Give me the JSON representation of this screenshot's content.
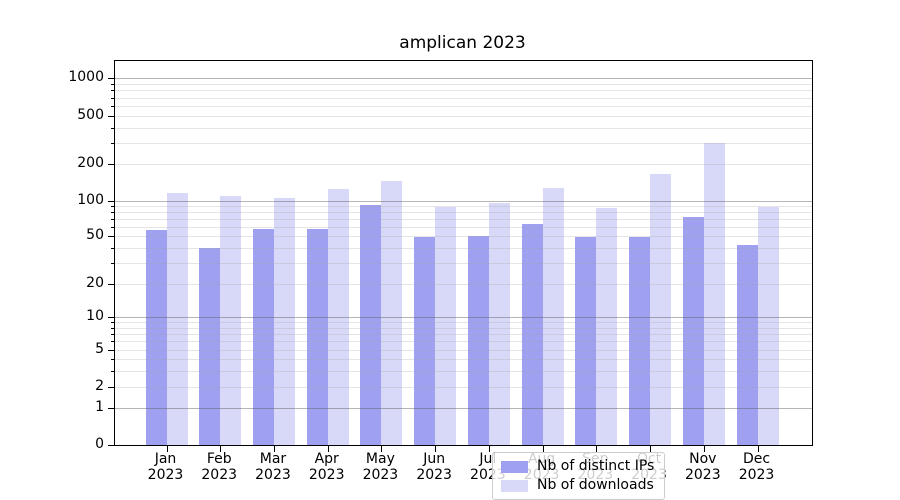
{
  "title": "amplican 2023",
  "legend": {
    "items": [
      {
        "label": "Nb of distinct IPs",
        "color": "#a0a0f0"
      },
      {
        "label": "Nb of downloads",
        "color": "#d8d8f8"
      }
    ]
  },
  "chart_data": {
    "type": "bar",
    "title": "amplican 2023",
    "categories": [
      "Jan",
      "Feb",
      "Mar",
      "Apr",
      "May",
      "Jun",
      "Jul",
      "Aug",
      "Sep",
      "Oct",
      "Nov",
      "Dec"
    ],
    "year": "2023",
    "series": [
      {
        "name": "Nb of distinct IPs",
        "color": "#a0a0f0",
        "values": [
          56,
          40,
          57,
          58,
          93,
          49,
          50,
          64,
          49,
          49,
          73,
          42
        ]
      },
      {
        "name": "Nb of downloads",
        "color": "#d8d8f8",
        "values": [
          116,
          110,
          106,
          126,
          145,
          88,
          97,
          128,
          87,
          166,
          300,
          89
        ]
      }
    ],
    "xlabel": "",
    "ylabel": "",
    "yscale": "log-like (0,1 then logarithmic)",
    "yticks": [
      0,
      1,
      2,
      5,
      10,
      20,
      50,
      100,
      200,
      500,
      1000
    ],
    "ytick_labels": [
      "0",
      "1",
      "2",
      "5",
      "10",
      "20",
      "50",
      "100",
      "200",
      "500",
      "1000"
    ],
    "ylim": [
      0,
      1350
    ],
    "grid": "horizontal; dark major lines at 1,10,100,1000; light minor lines at 2-9 per decade; drawn over bars",
    "legend_position": "lower center inside plot"
  }
}
